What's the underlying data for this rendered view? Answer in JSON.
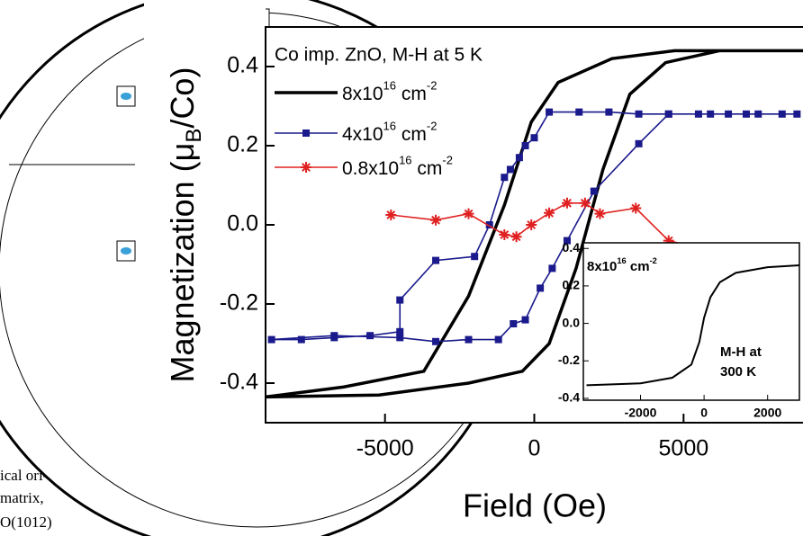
{
  "background_text": [
    "ical ori-",
    "matrix,",
    "O(1012)"
  ],
  "chart_data": {
    "type": "line",
    "title": "Co imp. ZnO, M-H at 5 K",
    "xlabel": "Field (Oe)",
    "ylabel": {
      "text": "Magnetization (μ",
      "sub": "B",
      "tail": "/Co)"
    },
    "xlim": [
      -9000,
      9000
    ],
    "ylim": [
      -0.5,
      0.5
    ],
    "xticks": [
      -5000,
      0,
      5000
    ],
    "yticks": [
      -0.4,
      -0.2,
      {
        "value": 0,
        "label": "0.0"
      },
      0.2,
      0.4
    ],
    "series": [
      {
        "name": [
          "8x10",
          "16",
          " cm",
          "-2"
        ],
        "color": "#000000",
        "marker": "none",
        "x": [
          9000,
          6200,
          4700,
          2600,
          800,
          -100,
          -1000,
          -2200,
          -3700,
          -6400,
          -9000,
          -5200,
          -2200,
          -400,
          500,
          1400,
          2300,
          3200,
          4400,
          6200,
          9000
        ],
        "values": [
          0.44,
          0.44,
          0.44,
          0.42,
          0.36,
          0.26,
          0.05,
          -0.18,
          -0.37,
          -0.41,
          -0.435,
          -0.43,
          -0.4,
          -0.37,
          -0.3,
          -0.11,
          0.14,
          0.33,
          0.41,
          0.44,
          0.44
        ]
      },
      {
        "name": [
          "4x10",
          "16",
          " cm",
          "-2"
        ],
        "color": "#1a1a8c",
        "marker": "square",
        "x": [
          8800,
          7500,
          6500,
          5500,
          4500,
          3500,
          2500,
          1500,
          500,
          0,
          -300,
          -500,
          -800,
          -1000,
          -1500,
          -2000,
          -3300,
          -4500,
          -4500,
          -5500,
          -6700,
          -7800,
          -8800,
          -6700,
          -4500,
          -3300,
          -2200,
          -1200,
          -700,
          -300,
          200,
          600,
          1100,
          2000,
          3500,
          4500,
          5900,
          7100,
          8300
        ],
        "values": [
          0.28,
          0.28,
          0.28,
          0.28,
          0.28,
          0.28,
          0.285,
          0.285,
          0.285,
          0.22,
          0.2,
          0.17,
          0.14,
          0.12,
          0.0,
          -0.08,
          -0.09,
          -0.19,
          -0.27,
          -0.28,
          -0.285,
          -0.29,
          -0.29,
          -0.28,
          -0.285,
          -0.295,
          -0.29,
          -0.29,
          -0.25,
          -0.24,
          -0.16,
          -0.11,
          -0.04,
          0.085,
          0.205,
          0.28,
          0.28,
          0.28,
          0.28
        ]
      },
      {
        "name": [
          "0.8x10",
          "16",
          " cm",
          "-2"
        ],
        "color": "#e02020",
        "marker": "star",
        "x": [
          -4800,
          -3300,
          -2200,
          -1000,
          -600,
          -100,
          500,
          1100,
          1700,
          2200,
          3400,
          4500,
          5600
        ],
        "values": [
          0.025,
          0.012,
          0.028,
          -0.025,
          -0.03,
          0.0,
          0.03,
          0.055,
          0.055,
          0.028,
          0.042,
          -0.04,
          -0.06
        ]
      }
    ],
    "inset": {
      "label": [
        "8x10",
        "16",
        " cm",
        "-2"
      ],
      "note": [
        "M-H at",
        "300 K"
      ],
      "xlim": [
        -3800,
        3000
      ],
      "ylim": [
        -0.41,
        0.43
      ],
      "xticks": [
        -2000,
        0,
        2000
      ],
      "yticks": [
        -0.4,
        -0.2,
        {
          "value": 0,
          "label": "0.0"
        },
        0.2,
        0.4
      ],
      "color": "#000000",
      "x": [
        -3700,
        -2000,
        -1000,
        -400,
        -150,
        0,
        200,
        500,
        1000,
        2000,
        3000
      ],
      "values": [
        -0.33,
        -0.32,
        -0.29,
        -0.22,
        -0.1,
        0.03,
        0.14,
        0.22,
        0.27,
        0.3,
        0.31
      ]
    }
  }
}
